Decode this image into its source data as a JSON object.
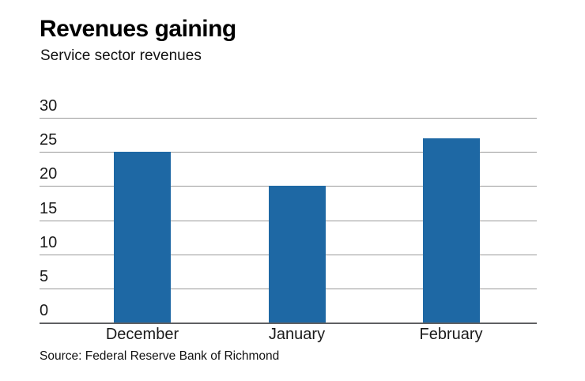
{
  "chart_data": {
    "type": "bar",
    "title": "Revenues gaining",
    "subtitle": "Service sector revenues",
    "categories": [
      "December",
      "January",
      "February"
    ],
    "values": [
      25,
      20,
      27
    ],
    "yticks": [
      0,
      5,
      10,
      15,
      20,
      25,
      30
    ],
    "ylim": [
      0,
      30
    ],
    "xlabel": "",
    "ylabel": "",
    "grid": true,
    "legend": false,
    "bar_color": "#1e68a4",
    "gridline_color": "#9a9a9a",
    "baseline_color": "#5f6062",
    "source": "Source: Federal Reserve Bank of Richmond"
  }
}
